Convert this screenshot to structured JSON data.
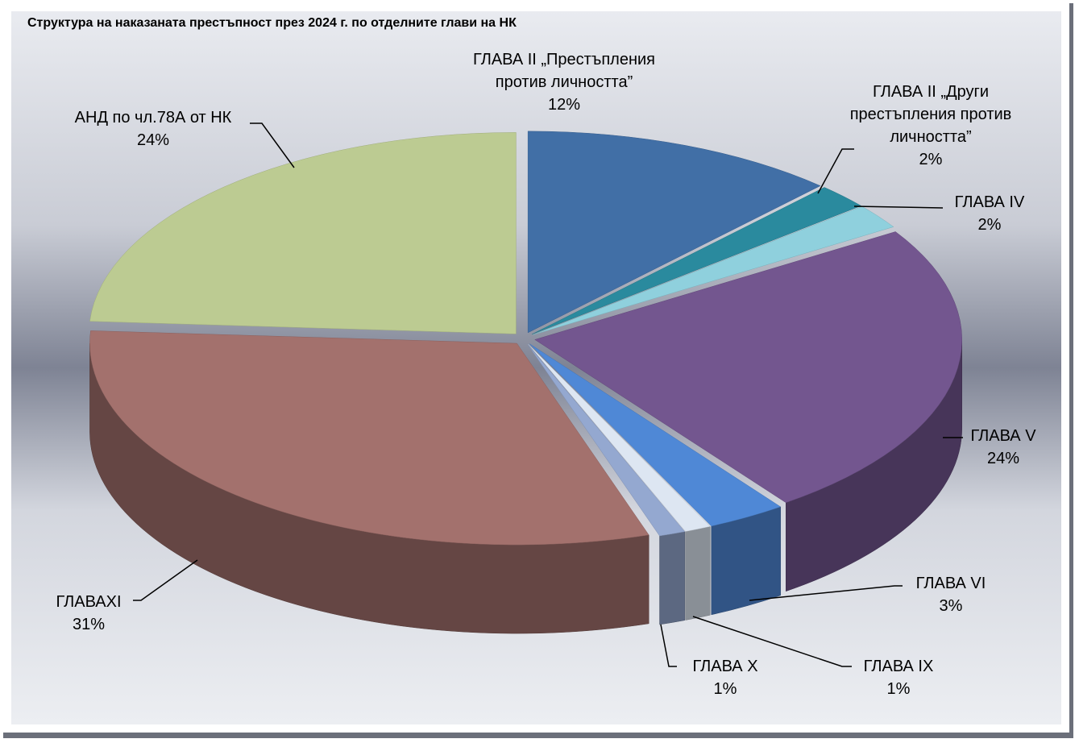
{
  "chart_data": {
    "type": "pie",
    "title": "Структура на наказаната престъпност през 2024 г. по отделните глави на НК",
    "categories": [
      "ГЛАВА II „Престъпления против личността”",
      "ГЛАВА II „Други престъпления против личността”",
      "ГЛАВА IV",
      "ГЛАВА V",
      "ГЛАВА VI",
      "ГЛАВА IX",
      "ГЛАВА X",
      "ГЛАВАXI",
      "АНД по чл.78А от НК"
    ],
    "values": [
      12,
      2,
      2,
      24,
      3,
      1,
      1,
      31,
      24
    ],
    "value_labels": [
      "12%",
      "2%",
      "2%",
      "24%",
      "3%",
      "1%",
      "1%",
      "31%",
      "24%"
    ],
    "colors": [
      "#416fa6",
      "#2a8a9e",
      "#8fd0dd",
      "#73568f",
      "#4f88d6",
      "#dde6f2",
      "#94a8d0",
      "#a3716d",
      "#bccb92"
    ]
  }
}
